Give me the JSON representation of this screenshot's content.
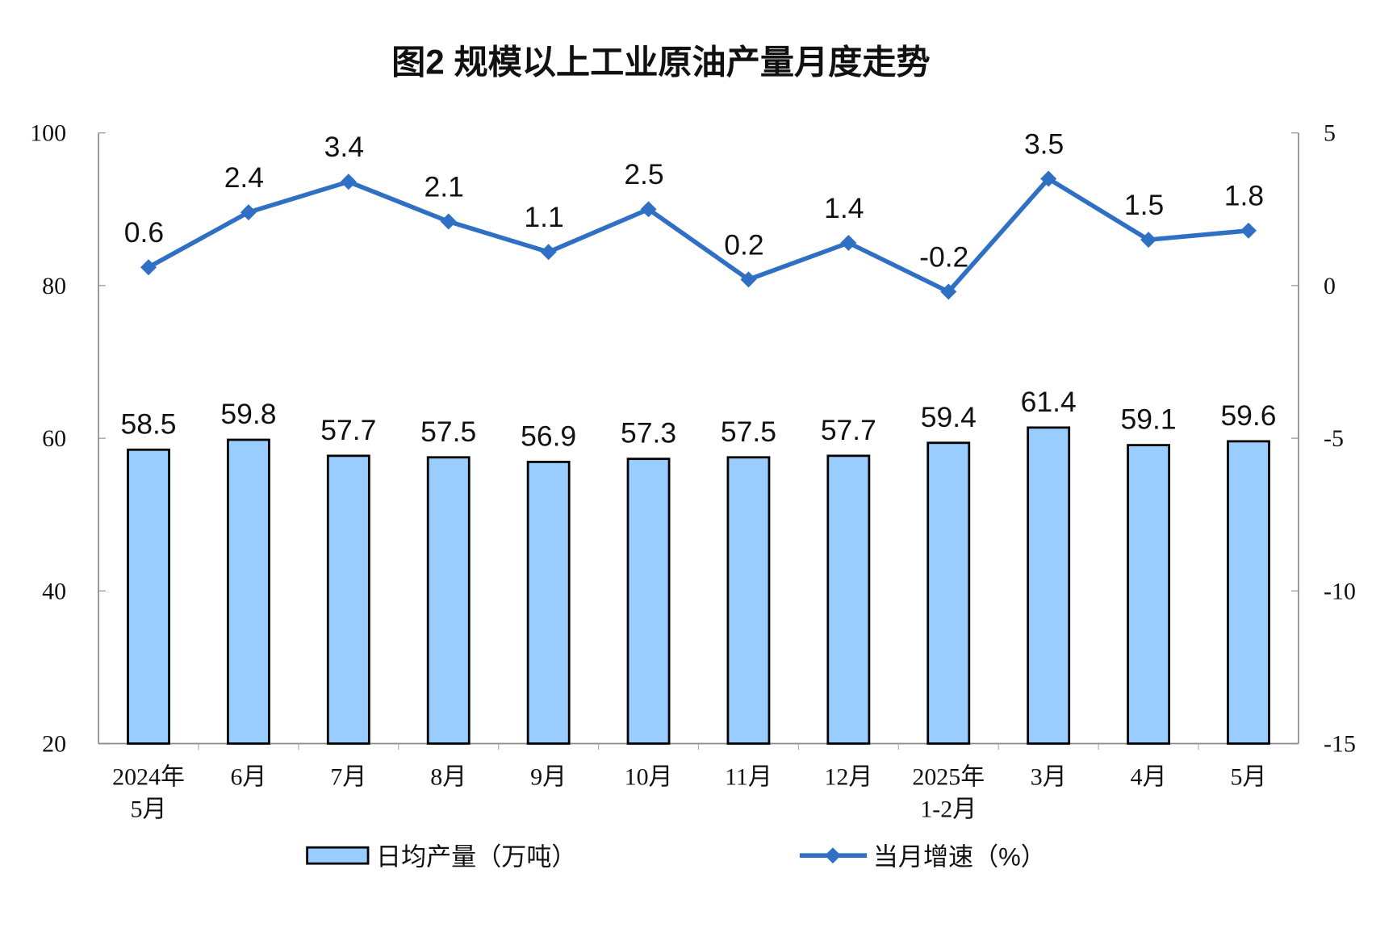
{
  "chart_data": {
    "type": "bar+line",
    "title": "图2  规模以上工业原油产量月度走势",
    "categories": [
      [
        "2024年",
        "5月"
      ],
      [
        "6月"
      ],
      [
        "7月"
      ],
      [
        "8月"
      ],
      [
        "9月"
      ],
      [
        "10月"
      ],
      [
        "11月"
      ],
      [
        "12月"
      ],
      [
        "2025年",
        "1-2月"
      ],
      [
        "3月"
      ],
      [
        "4月"
      ],
      [
        "5月"
      ]
    ],
    "series": [
      {
        "name": "日均产量（万吨）",
        "type": "bar",
        "axis": "left",
        "values": [
          58.5,
          59.8,
          57.7,
          57.5,
          56.9,
          57.3,
          57.5,
          57.7,
          59.4,
          61.4,
          59.1,
          59.6
        ],
        "labels": [
          "58.5",
          "59.8",
          "57.7",
          "57.5",
          "56.9",
          "57.3",
          "57.5",
          "57.7",
          "59.4",
          "61.4",
          "59.1",
          "59.6"
        ]
      },
      {
        "name": "当月增速（%）",
        "type": "line",
        "axis": "right",
        "values": [
          0.6,
          2.4,
          3.4,
          2.1,
          1.1,
          2.5,
          0.2,
          1.4,
          -0.2,
          3.5,
          1.5,
          1.8
        ],
        "labels": [
          "0.6",
          "2.4",
          "3.4",
          "2.1",
          "1.1",
          "2.5",
          "0.2",
          "1.4",
          "-0.2",
          "3.5",
          "1.5",
          "1.8"
        ]
      }
    ],
    "left_axis": {
      "ylim": [
        20,
        100
      ],
      "ticks": [
        "20",
        "40",
        "60",
        "80",
        "100"
      ]
    },
    "right_axis": {
      "ylim": [
        -15,
        5
      ],
      "ticks": [
        "-15",
        "-10",
        "-5",
        "0",
        "5"
      ]
    },
    "grid": false,
    "legend_placement": "bottom",
    "colors": {
      "bar_fill": "#99CCFF",
      "bar_stroke": "#000000",
      "line": "#2F6FC4"
    }
  }
}
